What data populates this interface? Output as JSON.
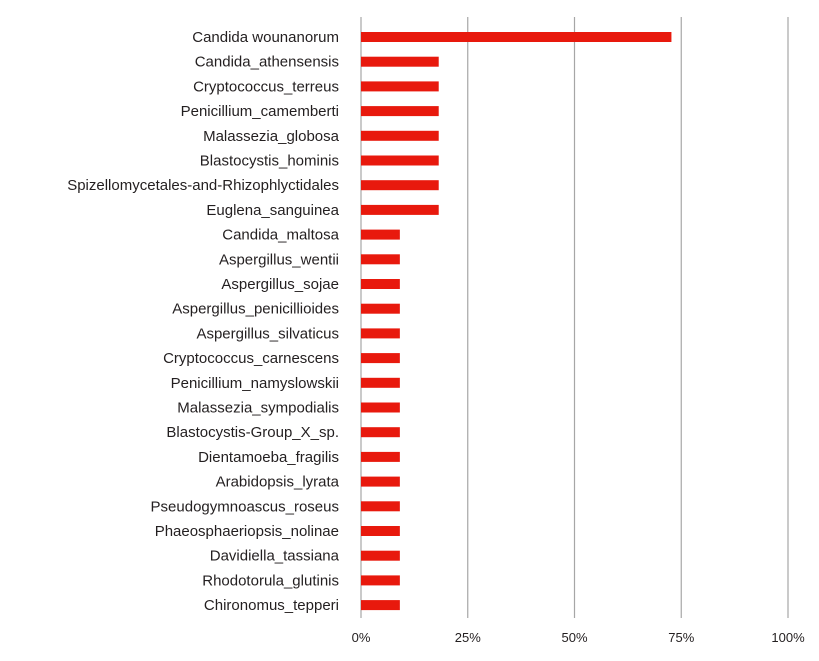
{
  "chart_data": {
    "type": "bar",
    "orientation": "horizontal",
    "title": "",
    "xlabel": "",
    "ylabel": "",
    "categories": [
      "Candida wounanorum",
      "Candida_athensensis",
      "Cryptococcus_terreus",
      "Penicillium_camemberti",
      "Malassezia_globosa",
      "Blastocystis_hominis",
      "Spizellomycetales-and-Rhizophlyctidales",
      "Euglena_sanguinea",
      "Candida_maltosa",
      "Aspergillus_wentii",
      "Aspergillus_sojae",
      "Aspergillus_penicillioides",
      "Aspergillus_silvaticus",
      "Cryptococcus_carnescens",
      "Penicillium_namyslowskii",
      "Malassezia_sympodialis",
      "Blastocystis-Group_X_sp.",
      "Dientamoeba_fragilis",
      "Arabidopsis_lyrata",
      "Pseudogymnoascus_roseus",
      "Phaeosphaeriopsis_nolinae",
      "Davidiella_tassiana",
      "Rhodotorula_glutinis",
      "Chironomus_tepperi"
    ],
    "values": [
      72.7,
      18.2,
      18.2,
      18.2,
      18.2,
      18.2,
      18.2,
      18.2,
      9.1,
      9.1,
      9.1,
      9.1,
      9.1,
      9.1,
      9.1,
      9.1,
      9.1,
      9.1,
      9.1,
      9.1,
      9.1,
      9.1,
      9.1,
      9.1
    ],
    "xlim": [
      0,
      100
    ],
    "x_ticks": [
      "0%",
      "25%",
      "50%",
      "75%",
      "100%"
    ],
    "x_tick_values": [
      0,
      25,
      50,
      75,
      100
    ],
    "grid": "vertical",
    "legend": "none",
    "bar_color": "#e8190d",
    "grid_color": "#a6a6a6"
  }
}
